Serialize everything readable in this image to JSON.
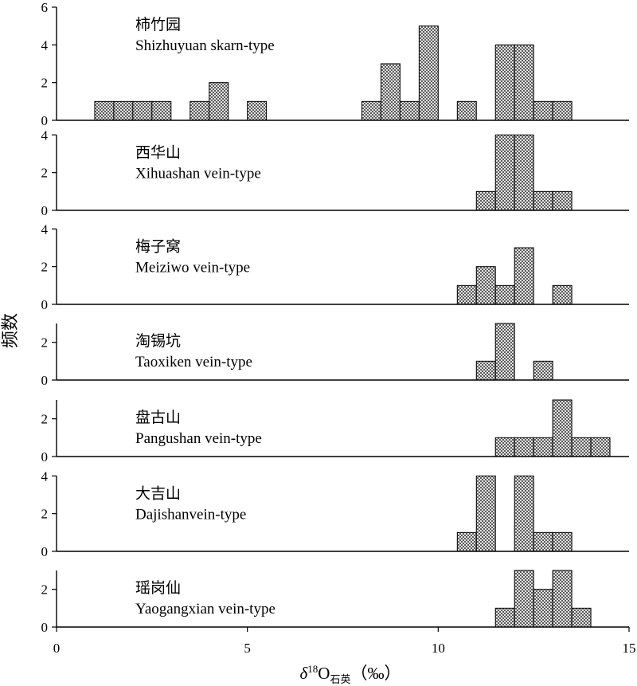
{
  "chart_data": {
    "type": "bar",
    "ylabel": "频数",
    "xlabel": {
      "symbol": "δ",
      "superscript": "18",
      "element": "O",
      "subscript": "石英",
      "unit": "（‰）"
    },
    "xlim": [
      0,
      15
    ],
    "xticks": [
      0,
      5,
      10,
      15
    ],
    "bin_width": 0.5,
    "panels": [
      {
        "title_cn": "柿竹园",
        "title_en": "Shizhuyuan skarn-type",
        "ylim": [
          0,
          6
        ],
        "yticks": [
          0,
          2,
          4,
          6
        ],
        "bins": [
          {
            "x0": 1.0,
            "count": 1
          },
          {
            "x0": 1.5,
            "count": 1
          },
          {
            "x0": 2.0,
            "count": 1
          },
          {
            "x0": 2.5,
            "count": 1
          },
          {
            "x0": 3.5,
            "count": 1
          },
          {
            "x0": 4.0,
            "count": 2
          },
          {
            "x0": 5.0,
            "count": 1
          },
          {
            "x0": 8.0,
            "count": 1
          },
          {
            "x0": 8.5,
            "count": 3
          },
          {
            "x0": 9.0,
            "count": 1
          },
          {
            "x0": 9.5,
            "count": 5
          },
          {
            "x0": 10.5,
            "count": 1
          },
          {
            "x0": 11.5,
            "count": 4
          },
          {
            "x0": 12.0,
            "count": 4
          },
          {
            "x0": 12.5,
            "count": 1
          },
          {
            "x0": 13.0,
            "count": 1
          }
        ]
      },
      {
        "title_cn": "西华山",
        "title_en": "Xihuashan vein-type",
        "ylim": [
          0,
          4
        ],
        "yticks": [
          0,
          2,
          4
        ],
        "bins": [
          {
            "x0": 11.0,
            "count": 1
          },
          {
            "x0": 11.5,
            "count": 4
          },
          {
            "x0": 12.0,
            "count": 4
          },
          {
            "x0": 12.5,
            "count": 1
          },
          {
            "x0": 13.0,
            "count": 1
          }
        ]
      },
      {
        "title_cn": "梅子窝",
        "title_en": "Meiziwo vein-type",
        "ylim": [
          0,
          4
        ],
        "yticks": [
          0,
          2,
          4
        ],
        "bins": [
          {
            "x0": 10.5,
            "count": 1
          },
          {
            "x0": 11.0,
            "count": 2
          },
          {
            "x0": 11.5,
            "count": 1
          },
          {
            "x0": 12.0,
            "count": 3
          },
          {
            "x0": 13.0,
            "count": 1
          }
        ]
      },
      {
        "title_cn": "淘锡坑",
        "title_en": "Taoxiken vein-type",
        "ylim": [
          0,
          3
        ],
        "yticks": [
          0,
          2
        ],
        "bins": [
          {
            "x0": 11.0,
            "count": 1
          },
          {
            "x0": 11.5,
            "count": 3
          },
          {
            "x0": 12.5,
            "count": 1
          }
        ]
      },
      {
        "title_cn": "盘古山",
        "title_en": "Pangushan vein-type",
        "ylim": [
          0,
          3
        ],
        "yticks": [
          0,
          2
        ],
        "bins": [
          {
            "x0": 11.5,
            "count": 1
          },
          {
            "x0": 12.0,
            "count": 1
          },
          {
            "x0": 12.5,
            "count": 1
          },
          {
            "x0": 13.0,
            "count": 3
          },
          {
            "x0": 13.5,
            "count": 1
          },
          {
            "x0": 14.0,
            "count": 1
          }
        ]
      },
      {
        "title_cn": "大吉山",
        "title_en": "Dajishanvein-type",
        "ylim": [
          0,
          4
        ],
        "yticks": [
          0,
          2,
          4
        ],
        "bins": [
          {
            "x0": 10.5,
            "count": 1
          },
          {
            "x0": 11.0,
            "count": 4
          },
          {
            "x0": 12.0,
            "count": 4
          },
          {
            "x0": 12.5,
            "count": 1
          },
          {
            "x0": 13.0,
            "count": 1
          }
        ]
      },
      {
        "title_cn": "瑶岗仙",
        "title_en": "Yaogangxian vein-type",
        "ylim": [
          0,
          3
        ],
        "yticks": [
          0,
          2
        ],
        "bins": [
          {
            "x0": 11.5,
            "count": 1
          },
          {
            "x0": 12.0,
            "count": 3
          },
          {
            "x0": 12.5,
            "count": 2
          },
          {
            "x0": 13.0,
            "count": 3
          },
          {
            "x0": 13.5,
            "count": 1
          }
        ]
      }
    ]
  }
}
